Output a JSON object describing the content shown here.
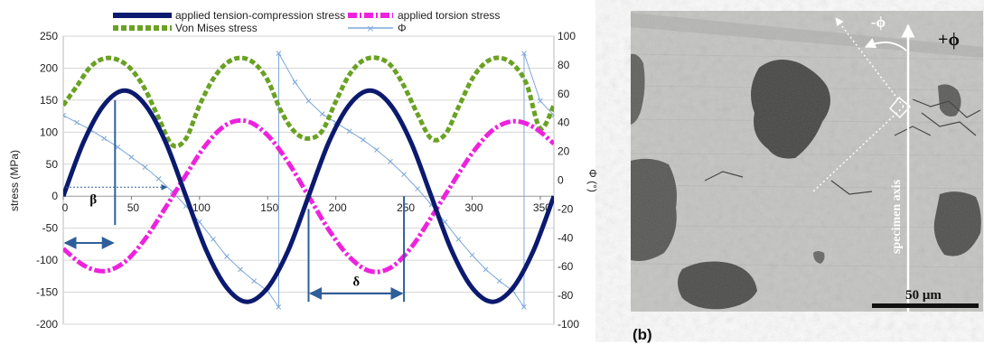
{
  "chart_data": {
    "type": "line",
    "title": "",
    "xlabel": "",
    "ylabel": "stress (MPa)",
    "y2label": "Φ (°)",
    "xlim": [
      0,
      360
    ],
    "ylim": [
      -200,
      250
    ],
    "y2lim": [
      -100,
      100
    ],
    "x_ticks": [
      0,
      50,
      100,
      150,
      200,
      250,
      300,
      350
    ],
    "y_ticks": [
      -200,
      -150,
      -100,
      -50,
      0,
      50,
      100,
      150,
      200,
      250
    ],
    "y2_ticks": [
      -100,
      -80,
      -60,
      -40,
      -20,
      0,
      20,
      40,
      60,
      80,
      100
    ],
    "grid": "horizontal",
    "legend_position": "top",
    "series": [
      {
        "name": "applied tension-compression stress",
        "axis": "left",
        "color": "#0b1a6e",
        "style": "solid-thick",
        "x": [
          0,
          15,
          30,
          45,
          60,
          75,
          90,
          105,
          120,
          135,
          150,
          165,
          180,
          195,
          210,
          225,
          240,
          255,
          270,
          285,
          300,
          315,
          330,
          345,
          360
        ],
        "values": [
          0,
          85,
          143,
          165,
          143,
          85,
          0,
          -85,
          -143,
          -165,
          -143,
          -85,
          0,
          85,
          143,
          165,
          143,
          85,
          0,
          -85,
          -143,
          -165,
          -143,
          -85,
          0
        ]
      },
      {
        "name": "applied torsion stress",
        "axis": "left",
        "color": "#ee22dd",
        "style": "dash-dot-thick",
        "x": [
          0,
          15,
          30,
          45,
          60,
          75,
          90,
          105,
          120,
          135,
          150,
          165,
          180,
          195,
          210,
          225,
          240,
          255,
          270,
          285,
          300,
          315,
          330,
          345,
          360
        ],
        "values": [
          -82,
          -108,
          -117,
          -103,
          -67,
          -18,
          33,
          81,
          112,
          117,
          95,
          53,
          0,
          -53,
          -95,
          -117,
          -112,
          -81,
          -33,
          18,
          67,
          103,
          117,
          108,
          82
        ]
      },
      {
        "name": "Von Mises stress",
        "axis": "left",
        "color": "#6aa123",
        "style": "dotted-thick",
        "x": [
          0,
          10,
          20,
          30,
          40,
          50,
          60,
          70,
          80,
          90,
          100,
          110,
          120,
          130,
          140,
          150,
          160,
          170,
          180,
          190,
          200,
          210,
          220,
          230,
          240,
          250,
          260,
          270,
          280,
          290,
          300,
          310,
          320,
          330,
          340,
          350,
          360
        ],
        "values": [
          142,
          172,
          202,
          215,
          213,
          198,
          167,
          122,
          80,
          90,
          142,
          183,
          208,
          216,
          208,
          181,
          132,
          100,
          90,
          102,
          148,
          190,
          212,
          216,
          205,
          172,
          128,
          90,
          96,
          139,
          183,
          209,
          216,
          206,
          175,
          106,
          142
        ]
      },
      {
        "name": "Φ",
        "axis": "right",
        "color": "#7da7d9",
        "style": "line-x-markers",
        "x": [
          0,
          10,
          20,
          30,
          40,
          50,
          60,
          70,
          80,
          90,
          100,
          110,
          120,
          130,
          140,
          150,
          158,
          158.1,
          170,
          180,
          190,
          200,
          210,
          220,
          230,
          240,
          250,
          260,
          270,
          280,
          290,
          300,
          310,
          320,
          330,
          338,
          338.1,
          350,
          360
        ],
        "values": [
          45,
          40,
          35,
          29,
          23,
          16,
          9,
          1,
          -8,
          -18,
          -29,
          -41,
          -53,
          -62,
          -70,
          -77,
          -88,
          88,
          68,
          55,
          46,
          40,
          34,
          28,
          21,
          13,
          4,
          -6,
          -17,
          -29,
          -41,
          -52,
          -62,
          -70,
          -77,
          -88,
          88,
          55,
          45
        ]
      }
    ],
    "annotations": {
      "beta_label": "β",
      "delta_label": "δ"
    }
  },
  "legend": {
    "items": [
      {
        "label": "applied tension-compression stress",
        "color": "#0b1a6e"
      },
      {
        "label": "applied torsion stress",
        "color": "#ee22dd"
      },
      {
        "label": "Von Mises stress",
        "color": "#6aa123"
      },
      {
        "label": "Φ",
        "color": "#7da7d9"
      }
    ]
  },
  "micrograph": {
    "panel_label": "(b)",
    "minus_phi": "-ϕ",
    "plus_phi": "+ϕ",
    "axis_text": "specimen axis",
    "scale_text": "50 μm"
  }
}
